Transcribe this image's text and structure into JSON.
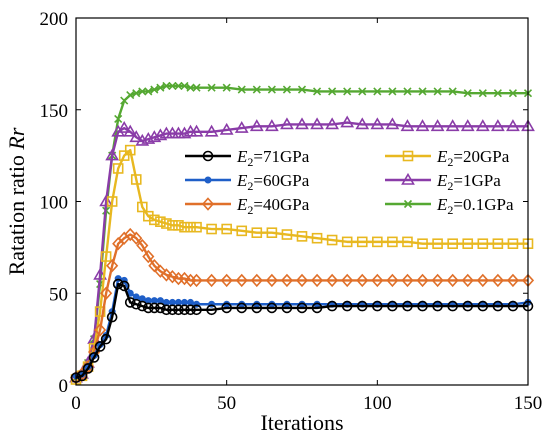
{
  "chart_data": {
    "type": "line",
    "xlabel": "Iterations",
    "ylabel": "Ratation ratio Rr",
    "ylabel_parts": [
      "Ratation ratio ",
      "Rr"
    ],
    "xlim": [
      0,
      150
    ],
    "ylim": [
      0,
      200
    ],
    "xticks": [
      0,
      50,
      100,
      150
    ],
    "yticks": [
      0,
      50,
      100,
      150,
      200
    ],
    "grid": false,
    "legend_position": "center-right",
    "legend_columns": 2,
    "series": [
      {
        "name": "E2=71GPa",
        "name_parts": [
          "E",
          "2",
          "=71GPa"
        ],
        "color": "#000000",
        "marker": "circle",
        "x": [
          0,
          2,
          4,
          6,
          8,
          10,
          12,
          14,
          16,
          18,
          20,
          22,
          24,
          26,
          28,
          30,
          32,
          34,
          36,
          38,
          40,
          45,
          50,
          55,
          60,
          65,
          70,
          75,
          80,
          85,
          90,
          95,
          100,
          105,
          110,
          115,
          120,
          125,
          130,
          135,
          140,
          145,
          150
        ],
        "y": [
          4,
          5,
          9,
          15,
          21,
          25,
          37,
          55,
          54,
          45,
          44,
          43,
          42,
          42,
          42,
          41,
          41,
          41,
          41,
          41,
          41,
          41,
          42,
          42,
          42,
          42,
          42,
          42,
          42,
          43,
          43,
          43,
          43,
          43,
          43,
          43,
          43,
          43,
          43,
          43,
          43,
          43,
          43
        ]
      },
      {
        "name": "E2=60GPa",
        "name_parts": [
          "E",
          "2",
          "=60GPa"
        ],
        "color": "#1f5fc8",
        "marker": "dot",
        "x": [
          0,
          2,
          4,
          6,
          8,
          10,
          12,
          14,
          16,
          18,
          20,
          22,
          24,
          26,
          28,
          30,
          32,
          34,
          36,
          38,
          40,
          45,
          50,
          55,
          60,
          65,
          70,
          75,
          80,
          85,
          90,
          95,
          100,
          105,
          110,
          115,
          120,
          125,
          130,
          135,
          140,
          145,
          150
        ],
        "y": [
          5,
          6,
          10,
          16,
          22,
          27,
          40,
          58,
          57,
          50,
          48,
          47,
          46,
          46,
          46,
          45,
          45,
          45,
          45,
          45,
          44,
          44,
          44,
          44,
          44,
          44,
          44,
          44,
          44,
          44,
          44,
          44,
          44,
          44,
          44,
          44,
          44,
          44,
          44,
          44,
          44,
          44,
          45
        ]
      },
      {
        "name": "E2=40GPa",
        "name_parts": [
          "E",
          "2",
          "=40GPa"
        ],
        "color": "#e0702a",
        "marker": "diamond",
        "x": [
          0,
          2,
          4,
          6,
          8,
          10,
          12,
          14,
          16,
          18,
          20,
          22,
          24,
          26,
          28,
          30,
          32,
          34,
          36,
          38,
          40,
          45,
          50,
          55,
          60,
          65,
          70,
          75,
          80,
          85,
          90,
          95,
          100,
          105,
          110,
          115,
          120,
          125,
          130,
          135,
          140,
          145,
          150
        ],
        "y": [
          4,
          6,
          10,
          18,
          30,
          50,
          65,
          77,
          80,
          82,
          80,
          76,
          70,
          65,
          62,
          60,
          59,
          58,
          58,
          57,
          57,
          57,
          57,
          57,
          57,
          57,
          57,
          57,
          57,
          57,
          57,
          57,
          57,
          57,
          57,
          57,
          57,
          57,
          57,
          57,
          57,
          57,
          57
        ]
      },
      {
        "name": "E2=20GPa",
        "name_parts": [
          "E",
          "2",
          "=20GPa"
        ],
        "color": "#e8b820",
        "marker": "square",
        "x": [
          0,
          2,
          4,
          6,
          8,
          10,
          12,
          14,
          16,
          18,
          20,
          22,
          24,
          26,
          28,
          30,
          32,
          34,
          36,
          38,
          40,
          45,
          50,
          55,
          60,
          65,
          70,
          75,
          80,
          85,
          90,
          95,
          100,
          105,
          110,
          115,
          120,
          125,
          130,
          135,
          140,
          145,
          150
        ],
        "y": [
          3,
          5,
          10,
          20,
          40,
          70,
          100,
          118,
          125,
          128,
          112,
          97,
          92,
          90,
          89,
          88,
          87,
          87,
          86,
          86,
          86,
          85,
          85,
          84,
          83,
          83,
          82,
          81,
          80,
          79,
          78,
          78,
          78,
          78,
          78,
          77,
          77,
          77,
          77,
          77,
          77,
          77,
          77
        ]
      },
      {
        "name": "E2=1GPa",
        "name_parts": [
          "E",
          "2",
          "=1GPa"
        ],
        "color": "#8a3ca8",
        "marker": "triangle",
        "x": [
          0,
          2,
          4,
          6,
          8,
          10,
          12,
          14,
          16,
          18,
          20,
          22,
          24,
          26,
          28,
          30,
          32,
          34,
          36,
          38,
          40,
          45,
          50,
          55,
          60,
          65,
          70,
          75,
          80,
          85,
          90,
          95,
          100,
          105,
          110,
          115,
          120,
          125,
          130,
          135,
          140,
          145,
          150
        ],
        "y": [
          4,
          6,
          12,
          25,
          60,
          100,
          125,
          138,
          140,
          138,
          135,
          133,
          134,
          135,
          136,
          137,
          137,
          137,
          137,
          138,
          138,
          138,
          139,
          140,
          141,
          141,
          142,
          142,
          142,
          142,
          143,
          142,
          142,
          142,
          141,
          141,
          141,
          141,
          141,
          141,
          141,
          141,
          141
        ]
      },
      {
        "name": "E2=0.1GPa",
        "name_parts": [
          "E",
          "2",
          "=0.1GPa"
        ],
        "color": "#55a832",
        "marker": "x",
        "x": [
          0,
          2,
          4,
          6,
          8,
          10,
          12,
          14,
          16,
          18,
          20,
          22,
          24,
          26,
          28,
          30,
          32,
          34,
          36,
          38,
          40,
          45,
          50,
          55,
          60,
          65,
          70,
          75,
          80,
          85,
          90,
          95,
          100,
          105,
          110,
          115,
          120,
          125,
          130,
          135,
          140,
          145,
          150
        ],
        "y": [
          4,
          6,
          12,
          25,
          55,
          95,
          125,
          145,
          155,
          158,
          159,
          160,
          160,
          161,
          162,
          163,
          163,
          163,
          163,
          162,
          162,
          162,
          162,
          161,
          161,
          161,
          161,
          161,
          160,
          160,
          160,
          160,
          160,
          160,
          160,
          160,
          160,
          160,
          159,
          159,
          159,
          159,
          159
        ]
      }
    ]
  }
}
